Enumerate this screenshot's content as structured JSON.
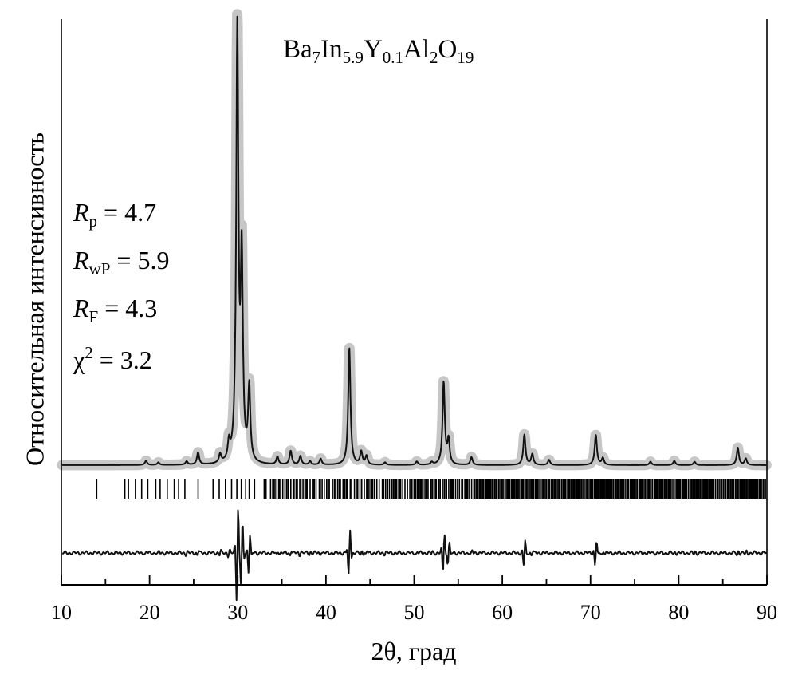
{
  "chart_data": {
    "type": "line",
    "title": "Ba7In5.9Y0.1Al2O19",
    "formula": {
      "parts": [
        {
          "t": "Ba",
          "s": "7"
        },
        {
          "t": "In",
          "s": "5.9"
        },
        {
          "t": "Y",
          "s": "0.1"
        },
        {
          "t": "Al",
          "s": "2"
        },
        {
          "t": "O",
          "s": "19"
        }
      ]
    },
    "xlabel": "2θ, град",
    "ylabel": "Относительная интенсивность",
    "xlim": [
      10,
      90
    ],
    "xticks": [
      "10",
      "20",
      "30",
      "40",
      "50",
      "60",
      "70",
      "80",
      "90"
    ],
    "stats": [
      {
        "sym": "R",
        "sub": "p",
        "sup": "",
        "value": "= 4.7"
      },
      {
        "sym": "R",
        "sub": "wP",
        "sup": "",
        "value": "= 5.9"
      },
      {
        "sym": "R",
        "sub": "F",
        "sup": "",
        "value": "= 4.3"
      },
      {
        "sym": "χ",
        "sub": "",
        "sup": "2",
        "value": "= 3.2"
      }
    ],
    "peaks": [
      {
        "x": 19.6,
        "h": 0.01
      },
      {
        "x": 21.0,
        "h": 0.006
      },
      {
        "x": 24.2,
        "h": 0.008
      },
      {
        "x": 25.5,
        "h": 0.028
      },
      {
        "x": 28.0,
        "h": 0.02
      },
      {
        "x": 29.0,
        "h": 0.04
      },
      {
        "x": 29.95,
        "h": 1.0
      },
      {
        "x": 30.45,
        "h": 0.46
      },
      {
        "x": 31.3,
        "h": 0.17
      },
      {
        "x": 34.5,
        "h": 0.018
      },
      {
        "x": 36.0,
        "h": 0.032
      },
      {
        "x": 37.1,
        "h": 0.02
      },
      {
        "x": 38.2,
        "h": 0.008
      },
      {
        "x": 39.4,
        "h": 0.014
      },
      {
        "x": 42.65,
        "h": 0.27
      },
      {
        "x": 44.0,
        "h": 0.03
      },
      {
        "x": 44.6,
        "h": 0.02
      },
      {
        "x": 46.7,
        "h": 0.006
      },
      {
        "x": 50.3,
        "h": 0.008
      },
      {
        "x": 52.0,
        "h": 0.006
      },
      {
        "x": 53.35,
        "h": 0.19
      },
      {
        "x": 53.9,
        "h": 0.055
      },
      {
        "x": 56.5,
        "h": 0.018
      },
      {
        "x": 62.5,
        "h": 0.07
      },
      {
        "x": 63.4,
        "h": 0.025
      },
      {
        "x": 65.3,
        "h": 0.012
      },
      {
        "x": 70.6,
        "h": 0.07
      },
      {
        "x": 71.4,
        "h": 0.016
      },
      {
        "x": 76.8,
        "h": 0.008
      },
      {
        "x": 79.5,
        "h": 0.01
      },
      {
        "x": 81.8,
        "h": 0.008
      },
      {
        "x": 86.7,
        "h": 0.04
      },
      {
        "x": 87.6,
        "h": 0.015
      }
    ],
    "bragg_positions": [
      14.0,
      17.2,
      17.6,
      18.4,
      19.1,
      19.8,
      20.7,
      21.2,
      22.0,
      22.8,
      23.3,
      24.0,
      25.5,
      27.2,
      27.9,
      28.6,
      29.3,
      29.9,
      30.4,
      30.9,
      31.3,
      31.9,
      33.0,
      33.2
    ]
  }
}
